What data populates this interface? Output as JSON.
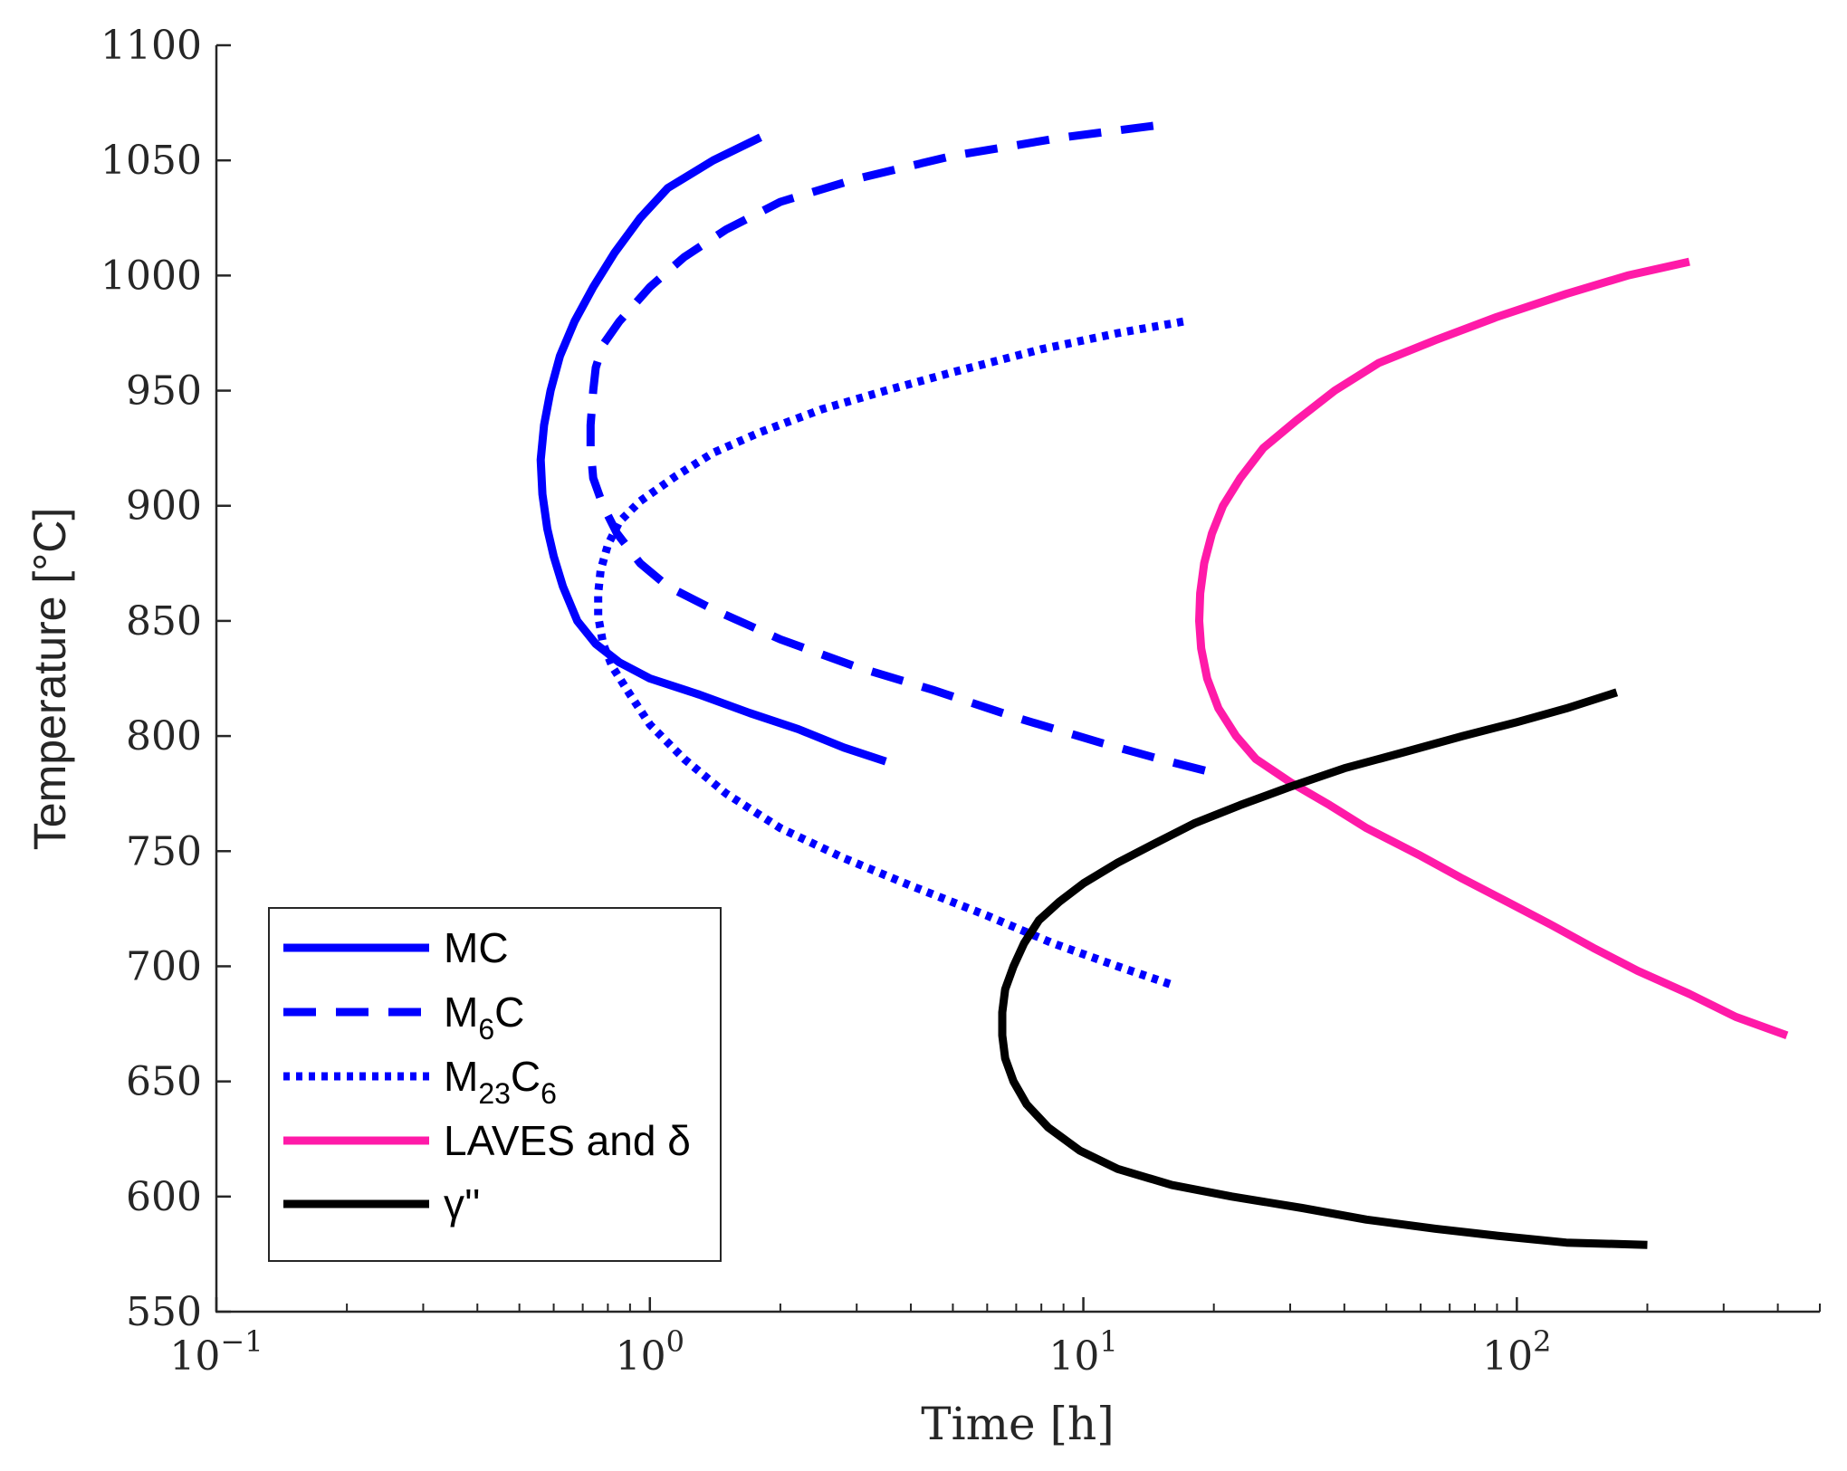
{
  "chart_data": {
    "type": "line",
    "title": "",
    "xlabel": "Time [h]",
    "ylabel": "Temperature [°C]",
    "xscale": "log",
    "xlim": [
      0.1,
      500
    ],
    "ylim": [
      550,
      1100
    ],
    "x_ticks": [
      {
        "value": 0.1,
        "base": "10",
        "exp": "−1"
      },
      {
        "value": 1,
        "base": "10",
        "exp": "0"
      },
      {
        "value": 10,
        "base": "10",
        "exp": "1"
      },
      {
        "value": 100,
        "base": "10",
        "exp": "2"
      }
    ],
    "y_ticks": [
      "550",
      "600",
      "650",
      "700",
      "750",
      "800",
      "850",
      "900",
      "950",
      "1000",
      "1050",
      "1100"
    ],
    "grid": false,
    "legend_position": "bottom-left",
    "series": [
      {
        "name": "MC",
        "legend": {
          "main": "M",
          "parts": [
            {
              "text": "C",
              "sub": false
            }
          ],
          "plain": "MC"
        },
        "color": "#0000ff",
        "style": "solid",
        "points": [
          [
            1.8,
            1060
          ],
          [
            1.4,
            1050
          ],
          [
            1.1,
            1038
          ],
          [
            0.95,
            1025
          ],
          [
            0.83,
            1010
          ],
          [
            0.74,
            995
          ],
          [
            0.67,
            980
          ],
          [
            0.62,
            965
          ],
          [
            0.59,
            950
          ],
          [
            0.57,
            935
          ],
          [
            0.56,
            920
          ],
          [
            0.565,
            905
          ],
          [
            0.58,
            890
          ],
          [
            0.6,
            878
          ],
          [
            0.63,
            865
          ],
          [
            0.68,
            850
          ],
          [
            0.75,
            840
          ],
          [
            0.85,
            832
          ],
          [
            1.0,
            825
          ],
          [
            1.3,
            818
          ],
          [
            1.7,
            810
          ],
          [
            2.2,
            803
          ],
          [
            2.8,
            795
          ],
          [
            3.5,
            789
          ]
        ]
      },
      {
        "name": "M6C",
        "legend": {
          "main": "M",
          "parts": [
            {
              "text": "6",
              "sub": true
            },
            {
              "text": "C",
              "sub": false
            }
          ],
          "plain": "M6C"
        },
        "color": "#0000ff",
        "style": "dashed",
        "points": [
          [
            14.5,
            1065
          ],
          [
            9,
            1060
          ],
          [
            5,
            1052
          ],
          [
            3,
            1042
          ],
          [
            2,
            1032
          ],
          [
            1.5,
            1020
          ],
          [
            1.2,
            1008
          ],
          [
            1.0,
            995
          ],
          [
            0.85,
            980
          ],
          [
            0.78,
            970
          ],
          [
            0.75,
            960
          ],
          [
            0.74,
            950
          ],
          [
            0.73,
            935
          ],
          [
            0.73,
            925
          ],
          [
            0.74,
            912
          ],
          [
            0.78,
            900
          ],
          [
            0.84,
            888
          ],
          [
            0.95,
            875
          ],
          [
            1.1,
            865
          ],
          [
            1.4,
            855
          ],
          [
            2.0,
            842
          ],
          [
            3.0,
            830
          ],
          [
            4.5,
            820
          ],
          [
            7,
            808
          ],
          [
            11,
            797
          ],
          [
            15,
            790
          ],
          [
            20,
            784
          ]
        ]
      },
      {
        "name": "M23C6",
        "legend": {
          "main": "M",
          "parts": [
            {
              "text": "23",
              "sub": true
            },
            {
              "text": "C",
              "sub": false
            },
            {
              "text": "6",
              "sub": true
            }
          ],
          "plain": "M23C6"
        },
        "color": "#0000ff",
        "style": "dotted",
        "points": [
          [
            17,
            980
          ],
          [
            12,
            975
          ],
          [
            8,
            968
          ],
          [
            5,
            958
          ],
          [
            3.5,
            950
          ],
          [
            2.5,
            942
          ],
          [
            1.8,
            932
          ],
          [
            1.4,
            923
          ],
          [
            1.15,
            913
          ],
          [
            0.95,
            902
          ],
          [
            0.85,
            893
          ],
          [
            0.8,
            883
          ],
          [
            0.77,
            872
          ],
          [
            0.76,
            862
          ],
          [
            0.76,
            852
          ],
          [
            0.78,
            840
          ],
          [
            0.82,
            830
          ],
          [
            0.9,
            818
          ],
          [
            1.0,
            805
          ],
          [
            1.2,
            790
          ],
          [
            1.5,
            775
          ],
          [
            2.0,
            760
          ],
          [
            2.8,
            747
          ],
          [
            4,
            735
          ],
          [
            6,
            722
          ],
          [
            8.5,
            710
          ],
          [
            12,
            700
          ],
          [
            16,
            692
          ]
        ]
      },
      {
        "name": "LAVES and δ",
        "legend": {
          "main": "LAVES and δ",
          "parts": [],
          "plain": "LAVES and δ"
        },
        "color": "#ff1aa8",
        "style": "solid",
        "points": [
          [
            250,
            1006
          ],
          [
            180,
            1000
          ],
          [
            130,
            992
          ],
          [
            90,
            982
          ],
          [
            65,
            972
          ],
          [
            48,
            962
          ],
          [
            38,
            950
          ],
          [
            31,
            937
          ],
          [
            26,
            925
          ],
          [
            23,
            912
          ],
          [
            21,
            900
          ],
          [
            19.8,
            888
          ],
          [
            19,
            875
          ],
          [
            18.6,
            862
          ],
          [
            18.5,
            850
          ],
          [
            18.7,
            838
          ],
          [
            19.3,
            825
          ],
          [
            20.5,
            812
          ],
          [
            22.5,
            800
          ],
          [
            25,
            790
          ],
          [
            30,
            780
          ],
          [
            37,
            770
          ],
          [
            45,
            760
          ],
          [
            60,
            748
          ],
          [
            75,
            738
          ],
          [
            95,
            728
          ],
          [
            120,
            718
          ],
          [
            150,
            708
          ],
          [
            190,
            698
          ],
          [
            250,
            688
          ],
          [
            320,
            678
          ],
          [
            420,
            670
          ]
        ]
      },
      {
        "name": "γ''",
        "legend": {
          "main": "γ''",
          "parts": [],
          "plain": "γ''"
        },
        "color": "#000000",
        "style": "solid",
        "points": [
          [
            170,
            819
          ],
          [
            130,
            812
          ],
          [
            100,
            806
          ],
          [
            75,
            800
          ],
          [
            55,
            793
          ],
          [
            40,
            786
          ],
          [
            30,
            778
          ],
          [
            23,
            770
          ],
          [
            18,
            762
          ],
          [
            14.5,
            753
          ],
          [
            12,
            745
          ],
          [
            10,
            736
          ],
          [
            8.8,
            728
          ],
          [
            7.9,
            720
          ],
          [
            7.3,
            710
          ],
          [
            6.9,
            700
          ],
          [
            6.6,
            690
          ],
          [
            6.5,
            680
          ],
          [
            6.5,
            670
          ],
          [
            6.6,
            660
          ],
          [
            6.9,
            650
          ],
          [
            7.4,
            640
          ],
          [
            8.3,
            630
          ],
          [
            9.8,
            620
          ],
          [
            12,
            612
          ],
          [
            16,
            605
          ],
          [
            22,
            600
          ],
          [
            32,
            595
          ],
          [
            45,
            590
          ],
          [
            65,
            586
          ],
          [
            90,
            583
          ],
          [
            130,
            580
          ],
          [
            200,
            579
          ]
        ]
      }
    ]
  }
}
